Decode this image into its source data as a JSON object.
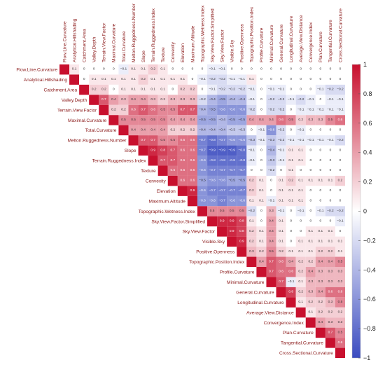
{
  "chart_data": {
    "type": "heatmap",
    "layout": "upper-triangle",
    "variables": [
      "Flow.Line.Curvature",
      "Analytical.Hillshading",
      "Catchment.Area",
      "Valley.Depth",
      "Terrain.View.Factor",
      "Maximal.Curvature",
      "Total.Curvature",
      "Melton.Ruggedness.Number",
      "Slope",
      "Terrain.Ruggedness.Index",
      "Texture",
      "Convexity",
      "Elevation",
      "Maximum.Altitude",
      "Topographic.Wetness.Index",
      "Sky.View.Factor.Simplified",
      "Sky.View.Factor",
      "Visible.Sky",
      "Positive.Openness",
      "Topographic.Position.Index",
      "Profile.Curvature",
      "Minimal.Curvature",
      "General.Curvature",
      "Longitudinal.Curvature",
      "Average.View.Distance",
      "Convergence.Index",
      "Plan.Curvature",
      "Tangential.Curvature",
      "Cross.Sectional.Curvature"
    ],
    "matrix": [
      [
        1,
        0.1,
        0,
        0,
        0,
        0,
        -0.1,
        0.1,
        0.1,
        0.2,
        0.1,
        0,
        0,
        0,
        0,
        -0.1,
        -0.1,
        0,
        0,
        0,
        0,
        0,
        0,
        0,
        0,
        0,
        0,
        0,
        0
      ],
      [
        null,
        1,
        0,
        0.1,
        0.1,
        0.1,
        0.1,
        0.1,
        0.2,
        0.1,
        0.1,
        0.1,
        0.1,
        0,
        -0.1,
        -0.2,
        -0.2,
        -0.1,
        -0.1,
        0.1,
        0,
        0,
        0,
        0,
        0,
        0,
        0,
        0,
        0
      ],
      [
        null,
        null,
        1,
        0.2,
        0.2,
        0,
        0.1,
        0.1,
        0.1,
        0.1,
        0.1,
        0,
        0.2,
        0.2,
        0,
        -0.1,
        -0.2,
        -0.2,
        -0.2,
        -0.1,
        0,
        -0.1,
        -0.1,
        0,
        0,
        0,
        -0.1,
        -0.2,
        -0.2
      ],
      [
        null,
        null,
        null,
        1,
        0.7,
        0.4,
        0.3,
        0.4,
        0.4,
        0.3,
        0.2,
        0.3,
        0.3,
        0.3,
        -0.2,
        -0.4,
        -0.5,
        -0.4,
        -0.4,
        -0.1,
        0,
        -0.2,
        -0.2,
        -0.1,
        -0.2,
        -0.1,
        0,
        -0.1,
        -0.1
      ],
      [
        null,
        null,
        null,
        null,
        1,
        0.2,
        0.2,
        0.6,
        0.7,
        0.6,
        0.5,
        0.5,
        0.7,
        0.7,
        -0.4,
        -0.5,
        -0.6,
        -0.6,
        -0.6,
        -0.2,
        0,
        -0.2,
        -0.2,
        0,
        -0.1,
        -0.1,
        -0.1,
        -0.1,
        -0.1
      ],
      [
        null,
        null,
        null,
        null,
        null,
        1,
        0.5,
        0.5,
        0.5,
        0.5,
        0.5,
        0.4,
        0.4,
        0.4,
        -0.5,
        -0.5,
        -0.4,
        -0.5,
        -0.5,
        0.4,
        0.4,
        0.4,
        0.6,
        0.5,
        0.2,
        0.3,
        0.3,
        0.5,
        0.6
      ],
      [
        null,
        null,
        null,
        null,
        null,
        null,
        1,
        0.4,
        0.4,
        0.4,
        0.4,
        0.2,
        0.2,
        0.2,
        -0.4,
        -0.4,
        -0.4,
        -0.3,
        -0.3,
        0,
        -0.1,
        -0.6,
        -0.2,
        0,
        -0.1,
        0,
        0,
        0,
        0
      ],
      [
        null,
        null,
        null,
        null,
        null,
        null,
        null,
        1,
        0.7,
        0.7,
        0.5,
        0.5,
        0.6,
        0.6,
        -0.7,
        -0.8,
        -0.7,
        -0.6,
        -0.6,
        -0.3,
        -0.1,
        -0.3,
        -0.2,
        -0.1,
        -0.1,
        -0.1,
        -0.1,
        -0.1,
        -0.2
      ],
      [
        null,
        null,
        null,
        null,
        null,
        null,
        null,
        null,
        1,
        0.9,
        0.8,
        0.7,
        0.6,
        0.6,
        -0.7,
        -0.9,
        -0.9,
        -0.9,
        -0.8,
        -0.1,
        0,
        -0.4,
        -0.1,
        0.1,
        0.1,
        0,
        0,
        0,
        0
      ],
      [
        null,
        null,
        null,
        null,
        null,
        null,
        null,
        null,
        null,
        1,
        0.7,
        0.7,
        0.6,
        0.6,
        -0.6,
        -0.8,
        -0.8,
        -0.8,
        -0.8,
        -0.1,
        0,
        -0.3,
        -0.1,
        0.1,
        0.1,
        0,
        0,
        0,
        0
      ],
      [
        null,
        null,
        null,
        null,
        null,
        null,
        null,
        null,
        null,
        null,
        1,
        0.6,
        0.6,
        0.6,
        -0.6,
        -0.7,
        -0.7,
        -0.7,
        -0.7,
        0,
        0,
        -0.2,
        0,
        0.1,
        0,
        0,
        0,
        0,
        0
      ],
      [
        null,
        null,
        null,
        null,
        null,
        null,
        null,
        null,
        null,
        null,
        null,
        1,
        0.6,
        0.6,
        -0.5,
        -0.6,
        -0.6,
        -0.5,
        -0.5,
        0.2,
        0.1,
        0,
        0.1,
        0.2,
        0.1,
        0.1,
        0.1,
        0.1,
        0.2
      ],
      [
        null,
        null,
        null,
        null,
        null,
        null,
        null,
        null,
        null,
        null,
        null,
        null,
        1,
        0.9,
        -0.6,
        -0.7,
        -0.7,
        -0.7,
        -0.7,
        0.2,
        0.1,
        0,
        0.1,
        0.1,
        0.1,
        0,
        0,
        0,
        0
      ],
      [
        null,
        null,
        null,
        null,
        null,
        null,
        null,
        null,
        null,
        null,
        null,
        null,
        null,
        1,
        -0.6,
        -0.6,
        -0.7,
        -0.6,
        -0.6,
        0.1,
        0.1,
        -0.1,
        0.1,
        0.1,
        0.1,
        0,
        0,
        0,
        0
      ],
      [
        null,
        null,
        null,
        null,
        null,
        null,
        null,
        null,
        null,
        null,
        null,
        null,
        null,
        null,
        1,
        0.5,
        0.5,
        0.5,
        0.5,
        -0.2,
        0,
        0.3,
        -0.1,
        0,
        -0.1,
        0,
        -0.1,
        -0.2,
        -0.2
      ],
      [
        null,
        null,
        null,
        null,
        null,
        null,
        null,
        null,
        null,
        null,
        null,
        null,
        null,
        null,
        null,
        1,
        0.9,
        0.9,
        0.8,
        0.1,
        0,
        0.4,
        0.1,
        0,
        0,
        0,
        0,
        0,
        -0.1
      ],
      [
        null,
        null,
        null,
        null,
        null,
        null,
        null,
        null,
        null,
        null,
        null,
        null,
        null,
        null,
        null,
        null,
        1,
        0.9,
        0.8,
        0.2,
        0.1,
        0.4,
        0.1,
        0,
        0,
        0.1,
        0.1,
        0.1,
        0
      ],
      [
        null,
        null,
        null,
        null,
        null,
        null,
        null,
        null,
        null,
        null,
        null,
        null,
        null,
        null,
        null,
        null,
        null,
        1,
        0.9,
        0.2,
        0.1,
        0.4,
        0.1,
        0,
        0.1,
        0.1,
        0.1,
        0.1,
        0.1
      ],
      [
        null,
        null,
        null,
        null,
        null,
        null,
        null,
        null,
        null,
        null,
        null,
        null,
        null,
        null,
        null,
        null,
        null,
        null,
        1,
        0.3,
        0.2,
        0.5,
        0.2,
        0.1,
        0.1,
        0.1,
        0.2,
        0.2,
        0.1
      ],
      [
        null,
        null,
        null,
        null,
        null,
        null,
        null,
        null,
        null,
        null,
        null,
        null,
        null,
        null,
        null,
        null,
        null,
        null,
        null,
        1,
        0.4,
        0.7,
        0.6,
        0.4,
        0.2,
        0.2,
        0.4,
        0.4,
        0.5
      ],
      [
        null,
        null,
        null,
        null,
        null,
        null,
        null,
        null,
        null,
        null,
        null,
        null,
        null,
        null,
        null,
        null,
        null,
        null,
        null,
        null,
        1,
        0.7,
        0.6,
        0.6,
        0.2,
        0.4,
        0.3,
        0.3,
        0.3
      ],
      [
        null,
        null,
        null,
        null,
        null,
        null,
        null,
        null,
        null,
        null,
        null,
        null,
        null,
        null,
        null,
        null,
        null,
        null,
        null,
        null,
        null,
        1,
        0.7,
        -0.1,
        0.1,
        0.3,
        0.3,
        0.3,
        0.3
      ],
      [
        null,
        null,
        null,
        null,
        null,
        null,
        null,
        null,
        null,
        null,
        null,
        null,
        null,
        null,
        null,
        null,
        null,
        null,
        null,
        null,
        null,
        null,
        1,
        0.8,
        0.2,
        0.3,
        0.4,
        0.6,
        0.6
      ],
      [
        null,
        null,
        null,
        null,
        null,
        null,
        null,
        null,
        null,
        null,
        null,
        null,
        null,
        null,
        null,
        null,
        null,
        null,
        null,
        null,
        null,
        null,
        null,
        1,
        0.1,
        0.2,
        0.2,
        0.3,
        0.5
      ],
      [
        null,
        null,
        null,
        null,
        null,
        null,
        null,
        null,
        null,
        null,
        null,
        null,
        null,
        null,
        null,
        null,
        null,
        null,
        null,
        null,
        null,
        null,
        null,
        null,
        1,
        0.1,
        0.2,
        0.2,
        0.2
      ],
      [
        null,
        null,
        null,
        null,
        null,
        null,
        null,
        null,
        null,
        null,
        null,
        null,
        null,
        null,
        null,
        null,
        null,
        null,
        null,
        null,
        null,
        null,
        null,
        null,
        null,
        1,
        0.4,
        0.3,
        0.3
      ],
      [
        null,
        null,
        null,
        null,
        null,
        null,
        null,
        null,
        null,
        null,
        null,
        null,
        null,
        null,
        null,
        null,
        null,
        null,
        null,
        null,
        null,
        null,
        null,
        null,
        null,
        null,
        1,
        0.7,
        0.5
      ],
      [
        null,
        null,
        null,
        null,
        null,
        null,
        null,
        null,
        null,
        null,
        null,
        null,
        null,
        null,
        null,
        null,
        null,
        null,
        null,
        null,
        null,
        null,
        null,
        null,
        null,
        null,
        null,
        1,
        0.6
      ],
      [
        null,
        null,
        null,
        null,
        null,
        null,
        null,
        null,
        null,
        null,
        null,
        null,
        null,
        null,
        null,
        null,
        null,
        null,
        null,
        null,
        null,
        null,
        null,
        null,
        null,
        null,
        null,
        null,
        1
      ]
    ],
    "value_range": [
      -1,
      1
    ],
    "colorbar_ticks": [
      1,
      0.8,
      0.6,
      0.4,
      0.2,
      0,
      -0.2,
      -0.4,
      -0.6,
      -0.8,
      -1
    ],
    "colorbar_tick_labels": [
      "1",
      "0.8",
      "0.6",
      "0.4",
      "0.2",
      "0",
      "−0.2",
      "−0.4",
      "−0.6",
      "−0.8",
      "−1"
    ],
    "colors": {
      "positive": "#c8102e",
      "neutral": "#ffffff",
      "negative": "#3b4cc0",
      "label_text": "#8b1a1a"
    },
    "legend_position": "right"
  }
}
